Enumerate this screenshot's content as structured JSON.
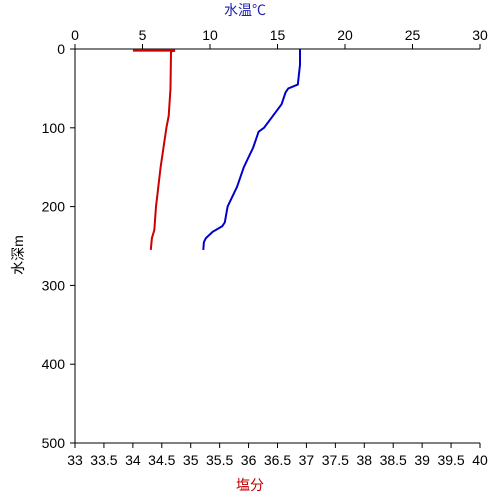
{
  "chart_data": {
    "type": "profile",
    "x2label": "水温℃",
    "x2label_color": "#1f1fb4",
    "xlabel": "塩分",
    "xlabel_color": "#c00000",
    "ylabel": "水深m",
    "xlim": [
      33,
      40
    ],
    "xticks": [
      33,
      33.5,
      34,
      34.5,
      35,
      35.5,
      36,
      36.5,
      37,
      37.5,
      38,
      38.5,
      39,
      39.5,
      40
    ],
    "x2lim": [
      0,
      30
    ],
    "x2ticks": [
      0,
      5,
      10,
      15,
      20,
      25,
      30
    ],
    "ylim": [
      0,
      500
    ],
    "yticks": [
      0,
      100,
      200,
      300,
      400,
      500
    ],
    "y_inverted": true,
    "series": [
      {
        "color": "#cc0000",
        "axis": "x",
        "x": [
          34.0,
          34.73,
          34.66,
          34.65,
          34.62,
          34.58,
          34.48,
          34.4,
          34.37,
          34.33,
          34.31
        ],
        "depth": [
          2,
          2,
          3,
          50,
          85,
          100,
          150,
          200,
          230,
          240,
          255
        ]
      },
      {
        "color": "#0000cc",
        "axis": "x2",
        "x": [
          16.67,
          16.67,
          16.5,
          15.8,
          15.6,
          15.3,
          14.0,
          13.6,
          13.2,
          12.5,
          12.0,
          11.3,
          11.1,
          10.9,
          10.2,
          9.7,
          9.55,
          9.5
        ],
        "depth": [
          0,
          20,
          45,
          50,
          55,
          70,
          100,
          105,
          125,
          150,
          175,
          200,
          220,
          225,
          232,
          240,
          245,
          255
        ]
      }
    ]
  }
}
